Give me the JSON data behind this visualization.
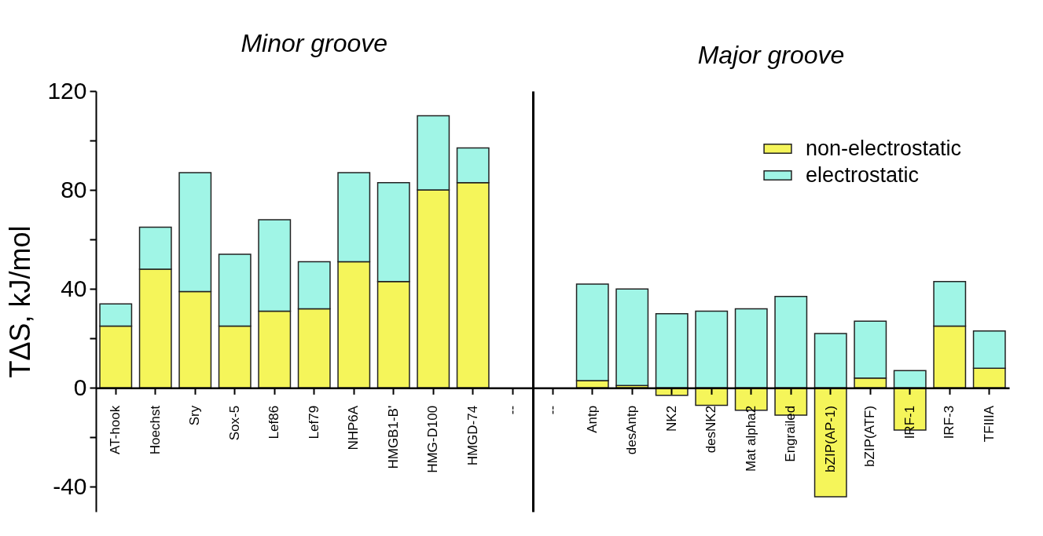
{
  "chart_data": [
    {
      "type": "bar",
      "title": "Minor groove",
      "ylabel": "TΔS, kJ/mol",
      "categories": [
        "AT-hook",
        "Hoechst",
        "Sry",
        "Sox-5",
        "Lef86",
        "Lef79",
        "NHP6A",
        "HMGB1-B'",
        "HMG-D100",
        "HMGD-74",
        "--"
      ],
      "stacked": true,
      "ylim": [
        -50,
        120
      ],
      "yticks": [
        -40,
        {
          "value": -20,
          "label": null
        },
        0,
        {
          "value": 20,
          "label": null
        },
        40,
        {
          "value": 60,
          "label": null
        },
        80,
        {
          "value": 100,
          "label": null
        },
        120
      ],
      "grid": false,
      "series": [
        {
          "color": "#f5f55a",
          "values": [
            25,
            48,
            39,
            25,
            31,
            32,
            51,
            43,
            80,
            83,
            null
          ]
        },
        {
          "color": "#a0f5e6",
          "values": [
            9,
            17,
            48,
            29,
            37,
            19,
            36,
            40,
            30,
            14,
            null
          ]
        }
      ]
    },
    {
      "type": "bar",
      "title": "Major groove",
      "categories": [
        "--",
        "Antp",
        "desAntp",
        "NK2",
        "desNK2",
        "Mat alpha2",
        "Engrailed",
        "bZIP(AP-1)",
        "bZIP(ATF)",
        "IRF-1",
        "IRF-3",
        "TFIIIA"
      ],
      "stacked": true,
      "ylim": [
        -50,
        120
      ],
      "yticks": [
        -40,
        0,
        40,
        80,
        120
      ],
      "tick_labels": "x",
      "grid": false,
      "legend": "top right",
      "series": [
        {
          "name": "non-electrostatic",
          "color": "#f5f55a",
          "values": [
            null,
            3,
            1,
            -3,
            -7,
            -9,
            -11,
            -44,
            4,
            -17,
            25,
            8
          ]
        },
        {
          "name": "electrostatic",
          "color": "#a0f5e6",
          "values": [
            null,
            39,
            39,
            30,
            31,
            32,
            37,
            22,
            23,
            7,
            18,
            15
          ]
        }
      ]
    }
  ]
}
